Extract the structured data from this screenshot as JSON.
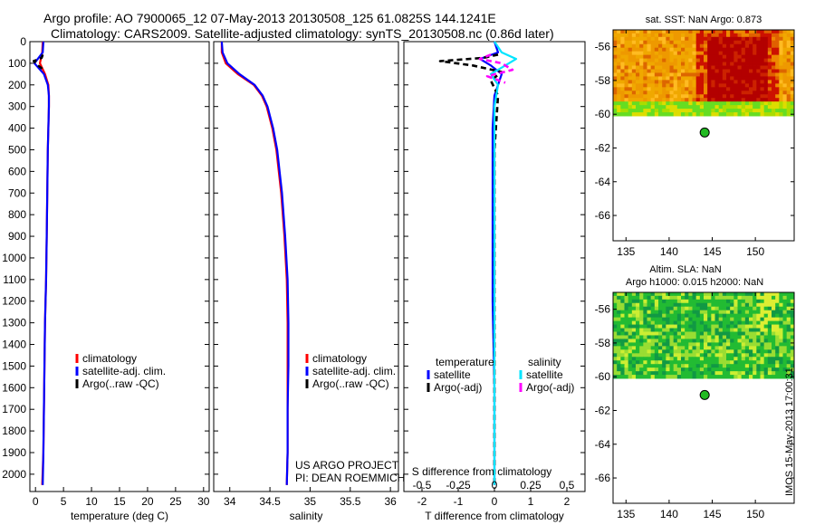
{
  "header": {
    "title_line1": "Argo profile: AO 7900065_12 07-May-2013 20130508_125 61.0825S 144.1241E",
    "title_line2": "Climatology: CARS2009. Satellite-adjusted climatology: synTS_20130508.nc (0.86d later)"
  },
  "stamp": "IMOS 15-May-2013 17:00:31",
  "colors": {
    "climatology": "#ff0000",
    "satellite": "#0000ff",
    "argo": "#000000",
    "salinity_satellite": "#00e5ff",
    "salinity_argo": "#ff00ff",
    "argo_marker": "#22bb22"
  },
  "chart_data": [
    {
      "type": "line",
      "name": "temperature",
      "xlabel": "temperature (deg C)",
      "ylabel": "",
      "xlim": [
        -1,
        31
      ],
      "ylim": [
        2080,
        0
      ],
      "xticks": [
        "0",
        "5",
        "10",
        "15",
        "20",
        "25",
        "30"
      ],
      "xtick_values": [
        0,
        5,
        10,
        15,
        20,
        25,
        30
      ],
      "yticks": [
        "0",
        "100",
        "200",
        "300",
        "400",
        "500",
        "600",
        "700",
        "800",
        "900",
        "1000",
        "1100",
        "1200",
        "1300",
        "1400",
        "1500",
        "1600",
        "1700",
        "1800",
        "1900",
        "2000"
      ],
      "ytick_values": [
        0,
        100,
        200,
        300,
        400,
        500,
        600,
        700,
        800,
        900,
        1000,
        1100,
        1200,
        1300,
        1400,
        1500,
        1600,
        1700,
        1800,
        1900,
        2000
      ],
      "legend": [
        "climatology",
        "satellite-adj. clim.",
        "Argo(..raw -QC)"
      ],
      "legend_position": "lower-right",
      "series": [
        {
          "name": "climatology",
          "style": "solid",
          "color": "#ff0000",
          "x": [
            1.3,
            1.2,
            0.8,
            1.7,
            2.3,
            2.4,
            2.4,
            2.3,
            2.2,
            2.1,
            2.0,
            1.9,
            1.7,
            1.6,
            1.5,
            1.4,
            1.2
          ],
          "y": [
            0,
            50,
            100,
            150,
            200,
            250,
            300,
            400,
            500,
            700,
            900,
            1100,
            1300,
            1500,
            1700,
            1900,
            2050
          ]
        },
        {
          "name": "satellite-adj. clim.",
          "style": "solid",
          "color": "#0000ff",
          "x": [
            1.4,
            1.3,
            -0.2,
            1.5,
            2.2,
            2.4,
            2.4,
            2.3,
            2.2,
            2.1,
            2.0,
            1.9,
            1.7,
            1.6,
            1.5,
            1.4,
            1.3
          ],
          "y": [
            0,
            50,
            100,
            150,
            200,
            250,
            300,
            400,
            500,
            700,
            900,
            1100,
            1300,
            1500,
            1700,
            1900,
            2050
          ]
        },
        {
          "name": "Argo(..raw -QC)",
          "style": "dashed",
          "color": "#000000",
          "x": [
            1.3,
            1.1,
            -0.3,
            0.2,
            1.2
          ],
          "y": [
            60,
            75,
            90,
            105,
            125
          ]
        }
      ]
    },
    {
      "type": "line",
      "name": "salinity",
      "xlabel": "salinity",
      "ylabel": "",
      "xlim": [
        33.8,
        36.1
      ],
      "ylim": [
        2080,
        0
      ],
      "xticks": [
        "34",
        "34.5",
        "35",
        "35.5",
        "36"
      ],
      "xtick_values": [
        34,
        34.5,
        35,
        35.5,
        36
      ],
      "legend": [
        "climatology",
        "satellite-adj. clim.",
        "Argo(..raw -QC)"
      ],
      "legend_position": "lower-right",
      "annotations": [
        "US ARGO PROJECT",
        "PI: DEAN ROEMMICH"
      ],
      "series": [
        {
          "name": "climatology",
          "style": "solid",
          "color": "#ff0000",
          "x": [
            33.9,
            33.9,
            33.95,
            34.1,
            34.3,
            34.4,
            34.46,
            34.53,
            34.58,
            34.64,
            34.68,
            34.71,
            34.72,
            34.72,
            34.72,
            34.72,
            34.71
          ],
          "y": [
            0,
            50,
            100,
            150,
            200,
            250,
            300,
            400,
            500,
            700,
            900,
            1100,
            1300,
            1500,
            1700,
            1900,
            2050
          ]
        },
        {
          "name": "satellite-adj. clim.",
          "style": "solid",
          "color": "#0000ff",
          "x": [
            33.9,
            33.91,
            33.97,
            34.12,
            34.31,
            34.41,
            34.47,
            34.54,
            34.59,
            34.65,
            34.69,
            34.72,
            34.73,
            34.73,
            34.72,
            34.72,
            34.71
          ],
          "y": [
            0,
            50,
            100,
            150,
            200,
            250,
            300,
            400,
            500,
            700,
            900,
            1100,
            1300,
            1500,
            1700,
            1900,
            2050
          ]
        }
      ]
    },
    {
      "type": "line",
      "name": "differences",
      "xlabel": "T difference from climatology",
      "top_label": "S difference from climatology",
      "xlim": [
        -2.5,
        2.5
      ],
      "ylim": [
        2080,
        0
      ],
      "xticks": [
        "-2",
        "-1",
        "0",
        "1",
        "2"
      ],
      "xtick_values": [
        -2,
        -1,
        0,
        1,
        2
      ],
      "sticks": [
        "-0.5",
        "-0.25",
        "0",
        "0.25",
        "0.5"
      ],
      "stick_values": [
        -2,
        -1,
        0,
        1,
        2
      ],
      "legend_temperature_title": "temperature",
      "legend_salinity_title": "salinity",
      "legend": [
        "satellite",
        "Argo(-adj)",
        "satellite",
        "Argo(-adj)"
      ],
      "legend_position": "lower",
      "series": [
        {
          "name": "satellite",
          "group": "temperature",
          "style": "solid",
          "color": "#0000ff",
          "x": [
            0,
            0.1,
            -0.4,
            -0.1,
            0.2,
            0.1,
            0.0,
            -0.05,
            -0.05,
            -0.05,
            0.0,
            0.0
          ],
          "y": [
            0,
            50,
            80,
            110,
            150,
            200,
            250,
            400,
            800,
            1200,
            1600,
            2050
          ]
        },
        {
          "name": "Argo(-adj)",
          "group": "temperature",
          "style": "dashed",
          "color": "#000000",
          "x": [
            0.1,
            -0.3,
            -1.5,
            -0.6,
            0.2,
            -0.1,
            0.1,
            0.0,
            0.0
          ],
          "y": [
            60,
            75,
            90,
            110,
            140,
            180,
            250,
            500,
            2050
          ]
        },
        {
          "name": "satellite",
          "group": "salinity",
          "style": "solid",
          "color": "#00e5ff",
          "x": [
            0.0,
            0.2,
            0.6,
            0.3,
            -0.1,
            0.1,
            0.0,
            0.0,
            0.0,
            0.0
          ],
          "y": [
            0,
            50,
            80,
            110,
            150,
            200,
            300,
            600,
            1200,
            2050
          ]
        },
        {
          "name": "Argo(-adj)",
          "group": "salinity",
          "style": "dashed",
          "color": "#ff00ff",
          "x": [
            -0.1,
            -0.4,
            0.2,
            0.5,
            -0.2,
            0.3
          ],
          "y": [
            60,
            80,
            100,
            130,
            160,
            190
          ]
        }
      ]
    },
    {
      "type": "heatmap",
      "name": "sst-map",
      "title": "sat. SST: NaN Argo: 0.873",
      "xlim": [
        133.5,
        154.5
      ],
      "ylim": [
        -67.5,
        -55
      ],
      "xticks": [
        "135",
        "140",
        "145",
        "150"
      ],
      "xtick_values": [
        135,
        140,
        145,
        150
      ],
      "yticks": [
        "-56",
        "-58",
        "-60",
        "-62",
        "-64",
        "-66"
      ],
      "ytick_values": [
        -56,
        -58,
        -60,
        -62,
        -64,
        -66
      ],
      "data_lat_range": [
        -60.1,
        -55.1
      ],
      "argo_position": {
        "lon": 144.1241,
        "lat": -61.0825
      }
    },
    {
      "type": "heatmap",
      "name": "sla-map",
      "title_line1": "Altim. SLA: NaN",
      "title_line2": "Argo h1000: 0.015 h2000: NaN",
      "xlim": [
        133.5,
        154.5
      ],
      "ylim": [
        -67.5,
        -55
      ],
      "xticks": [
        "135",
        "140",
        "145",
        "150"
      ],
      "xtick_values": [
        135,
        140,
        145,
        150
      ],
      "yticks": [
        "-56",
        "-58",
        "-60",
        "-62",
        "-64",
        "-66"
      ],
      "ytick_values": [
        -56,
        -58,
        -60,
        -62,
        -64,
        -66
      ],
      "data_lat_range": [
        -60.1,
        -55.1
      ],
      "argo_position": {
        "lon": 144.1241,
        "lat": -61.0825
      }
    }
  ]
}
